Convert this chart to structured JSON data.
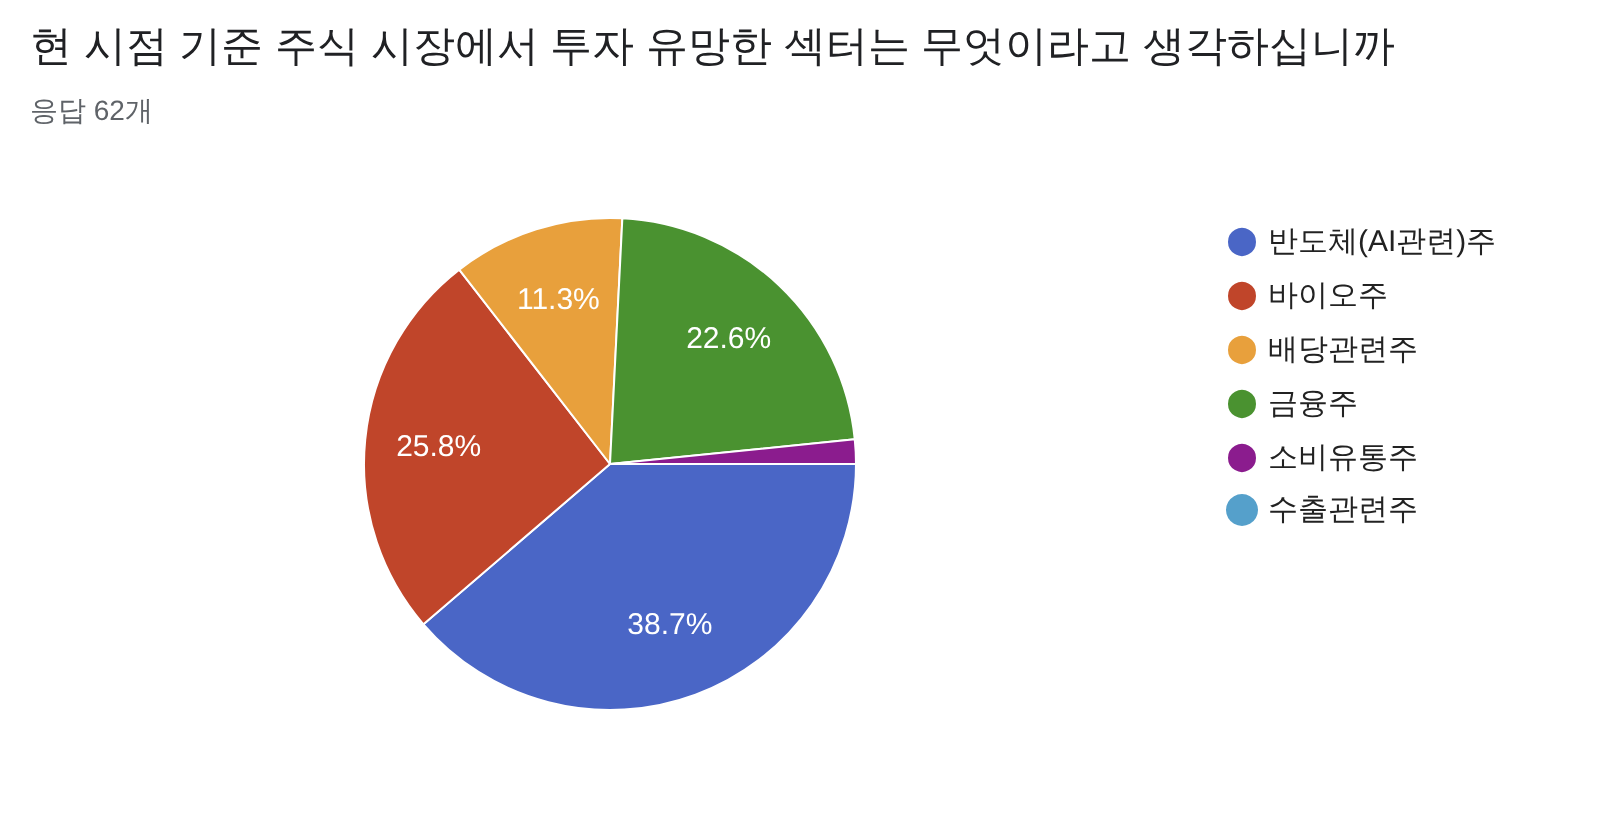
{
  "chart_data": {
    "type": "pie",
    "title": "현 시점 기준 주식 시장에서 투자 유망한 섹터는 무엇이라고 생각하십니까",
    "subtitle": "응답 62개",
    "categories": [
      "반도체(AI관련)주",
      "바이오주",
      "배당관련주",
      "금융주",
      "소비유통주",
      "수출관련주"
    ],
    "values": [
      38.7,
      25.8,
      11.3,
      22.6,
      1.6,
      0
    ],
    "colors": [
      "#4a66c6",
      "#c0452a",
      "#e8a03c",
      "#4a9230",
      "#8b1c8e",
      "#55a0cb"
    ],
    "value_labels": [
      "38.7%",
      "25.8%",
      "11.3%",
      "22.6%",
      null,
      null
    ],
    "legend": "right"
  }
}
